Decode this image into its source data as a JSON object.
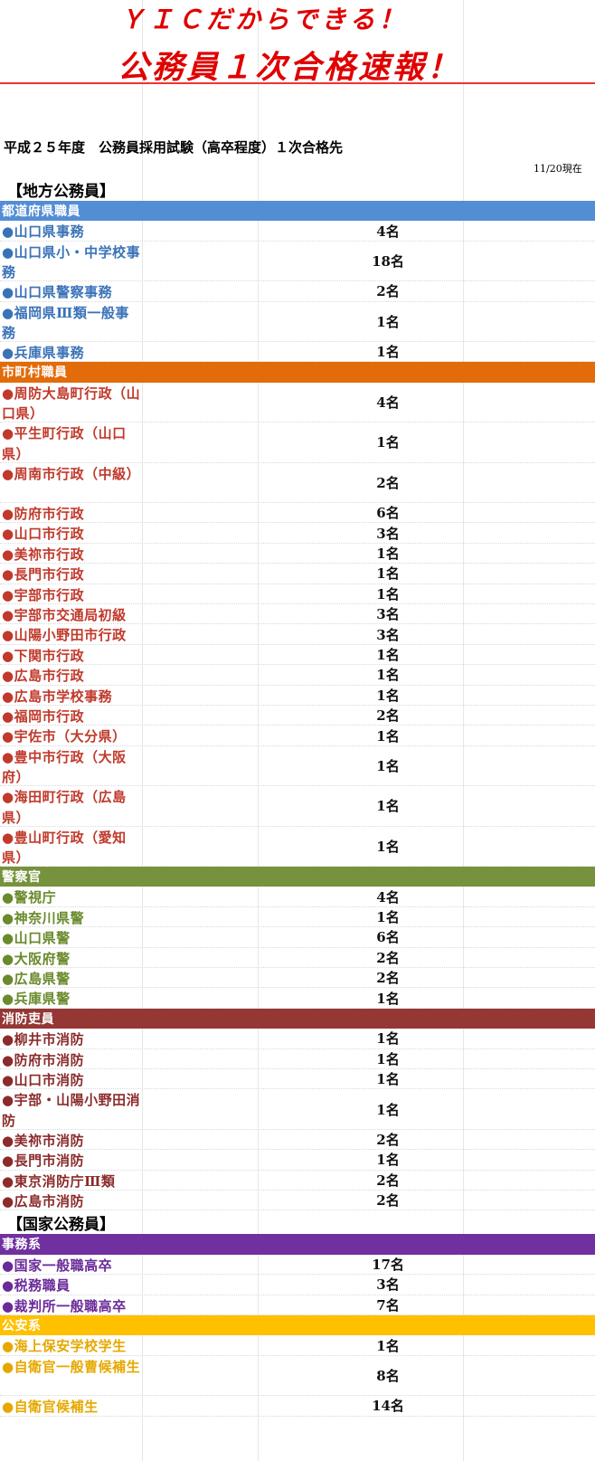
{
  "header": {
    "title_line1": "ＹＩＣだからできる！",
    "title_line2": "公務員１次合格速報！",
    "exam_title": "平成２５年度　公務員採用試験（高卒程度）１次合格先",
    "as_of": "11/20現在"
  },
  "colors": {
    "prefecture": "#538ed5",
    "municipal": "#e26b0a",
    "police": "#76923c",
    "fire": "#953734",
    "national_admin": "#7030a0",
    "public_safety": "#ffc000"
  },
  "sections": [
    {
      "label": "【地方公務員】",
      "categories": [
        {
          "name": "都道府県職員",
          "color": "#538ed5",
          "item_color": "#3a72b8",
          "items": [
            {
              "text": "●山口県事務",
              "count": "4名"
            },
            {
              "text": "●山口県小・中学校事務",
              "count": "18名"
            },
            {
              "text": "●山口県警察事務",
              "count": "2名"
            },
            {
              "text": "●福岡県Ⅲ類一般事務",
              "count": "1名"
            },
            {
              "text": "●兵庫県事務",
              "count": "1名"
            }
          ]
        },
        {
          "name": "市町村職員",
          "color": "#e26b0a",
          "item_color": "#c0392b",
          "items": [
            {
              "text": "●周防大島町行政（山口県）",
              "count": "4名"
            },
            {
              "text": "●平生町行政（山口県）",
              "count": "1名"
            },
            {
              "text": "●周南市行政（中級）",
              "count": "2名"
            },
            {
              "text": "●防府市行政",
              "count": "6名"
            },
            {
              "text": "●山口市行政",
              "count": "3名"
            },
            {
              "text": "●美祢市行政",
              "count": "1名"
            },
            {
              "text": "●長門市行政",
              "count": "1名"
            },
            {
              "text": "●宇部市行政",
              "count": "1名"
            },
            {
              "text": "●宇部市交通局初級",
              "count": "3名"
            },
            {
              "text": "●山陽小野田市行政",
              "count": "3名"
            },
            {
              "text": "●下関市行政",
              "count": "1名"
            },
            {
              "text": "●広島市行政",
              "count": "1名"
            },
            {
              "text": "●広島市学校事務",
              "count": "1名"
            },
            {
              "text": "●福岡市行政",
              "count": "2名"
            },
            {
              "text": "●宇佐市（大分県）",
              "count": "1名"
            },
            {
              "text": "●豊中市行政（大阪府）",
              "count": "1名"
            },
            {
              "text": "●海田町行政（広島県）",
              "count": "1名"
            },
            {
              "text": "●豊山町行政（愛知県）",
              "count": "1名"
            }
          ]
        },
        {
          "name": "警察官",
          "color": "#76923c",
          "item_color": "#6a8a2c",
          "items": [
            {
              "text": "●警視庁",
              "count": "4名"
            },
            {
              "text": "●神奈川県警",
              "count": "1名"
            },
            {
              "text": "●山口県警",
              "count": "6名"
            },
            {
              "text": "●大阪府警",
              "count": "2名"
            },
            {
              "text": "●広島県警",
              "count": "2名"
            },
            {
              "text": "●兵庫県警",
              "count": "1名"
            }
          ]
        },
        {
          "name": "消防吏員",
          "color": "#953734",
          "item_color": "#8b2b2b",
          "items": [
            {
              "text": "●柳井市消防",
              "count": "1名"
            },
            {
              "text": "●防府市消防",
              "count": "1名"
            },
            {
              "text": "●山口市消防",
              "count": "1名"
            },
            {
              "text": "●宇部・山陽小野田消防",
              "count": "1名"
            },
            {
              "text": "●美祢市消防",
              "count": "2名"
            },
            {
              "text": "●長門市消防",
              "count": "1名"
            },
            {
              "text": "●東京消防庁Ⅲ類",
              "count": "2名"
            },
            {
              "text": "●広島市消防",
              "count": "2名"
            }
          ]
        }
      ]
    },
    {
      "label": "【国家公務員】",
      "categories": [
        {
          "name": "事務系",
          "color": "#7030a0",
          "item_color": "#6a2a9a",
          "items": [
            {
              "text": "●国家一般職高卒",
              "count": "17名"
            },
            {
              "text": "●税務職員",
              "count": "3名"
            },
            {
              "text": "●裁判所一般職高卒",
              "count": "7名"
            }
          ]
        },
        {
          "name": "公安系",
          "color": "#ffc000",
          "item_color": "#e6a800",
          "items": [
            {
              "text": "●海上保安学校学生",
              "count": "1名"
            },
            {
              "text": "●自衛官一般曹候補生",
              "count": "8名"
            },
            {
              "text": "●自衛官候補生",
              "count": "14名"
            }
          ]
        }
      ]
    }
  ]
}
